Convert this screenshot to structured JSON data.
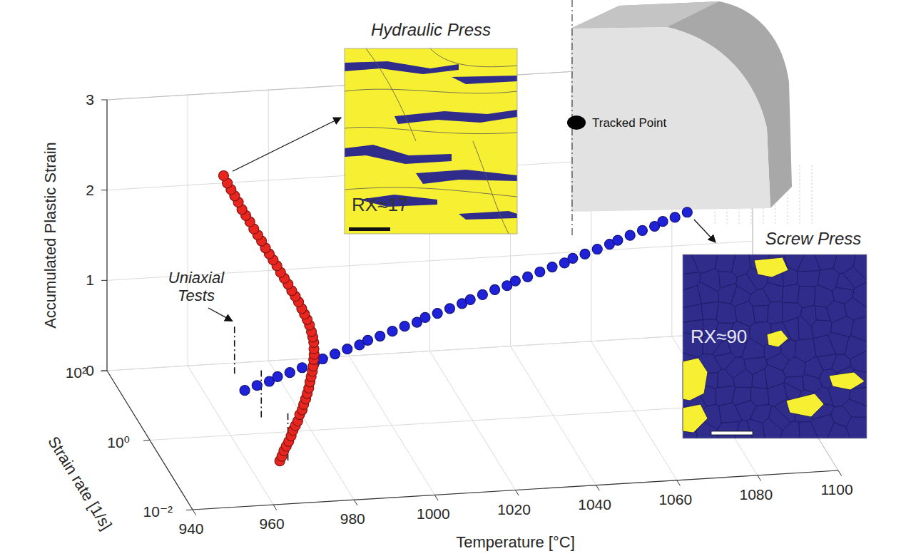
{
  "chart_data": {
    "type": "scatter3d",
    "xlabel": "Temperature [°C]",
    "ylabel": "Strain rate [1/s]",
    "zlabel": "Accumulated Plastic Strain",
    "xlim": [
      940,
      1100
    ],
    "xticks": [
      940,
      960,
      980,
      1000,
      1020,
      1040,
      1060,
      1080,
      1100
    ],
    "ylim": [
      0.01,
      100
    ],
    "yticks": [
      {
        "value": 0.01,
        "label": "10⁻²"
      },
      {
        "value": 1,
        "label": "10⁰"
      },
      {
        "value": 100,
        "label": "10²"
      }
    ],
    "zlim": [
      0,
      3
    ],
    "zticks": [
      0,
      1,
      2,
      3
    ],
    "log": "y",
    "grid": true,
    "series": [
      {
        "color": "#e8251f",
        "marker": "circle",
        "x": [
          968,
          968.5,
          969,
          969.6,
          970.2,
          970.8,
          971.4,
          972,
          972.6,
          973.2,
          973.8,
          974.3,
          974.8,
          975.3,
          975.8,
          976.2,
          976.6,
          977,
          977.3,
          977.6,
          977.8,
          977.9,
          978,
          977.9,
          977.7,
          977.4,
          977,
          976.5,
          976,
          975.4,
          974.8,
          974.1,
          973.4,
          972.7,
          972,
          971.3,
          970.6,
          969.9,
          969.2,
          968.5,
          967.8,
          967.1,
          966.4,
          965.7,
          965,
          964.4,
          963.8,
          963.2,
          962.6,
          962
        ],
        "y": [
          0.16,
          0.16,
          0.16,
          0.16,
          0.16,
          0.16,
          0.17,
          0.17,
          0.17,
          0.18,
          0.18,
          0.19,
          0.19,
          0.2,
          0.21,
          0.22,
          0.23,
          0.24,
          0.25,
          0.27,
          0.28,
          0.3,
          0.32,
          0.34,
          0.36,
          0.39,
          0.42,
          0.45,
          0.49,
          0.53,
          0.58,
          0.63,
          0.69,
          0.76,
          0.84,
          0.92,
          1.02,
          1.14,
          1.27,
          1.42,
          1.58,
          1.78,
          2.01,
          2.28,
          2.57,
          2.92,
          3.33,
          3.8,
          4.36,
          5.01
        ],
        "z": [
          0,
          0.05,
          0.11,
          0.16,
          0.21,
          0.27,
          0.32,
          0.37,
          0.42,
          0.48,
          0.53,
          0.58,
          0.64,
          0.69,
          0.74,
          0.8,
          0.85,
          0.9,
          0.95,
          1.01,
          1.06,
          1.11,
          1.17,
          1.22,
          1.27,
          1.33,
          1.38,
          1.43,
          1.48,
          1.54,
          1.59,
          1.64,
          1.7,
          1.75,
          1.8,
          1.86,
          1.91,
          1.96,
          2.01,
          2.07,
          2.12,
          2.17,
          2.23,
          2.28,
          2.33,
          2.39,
          2.44,
          2.49,
          2.54,
          2.6
        ]
      },
      {
        "color": "#1f22d8",
        "marker": "circle",
        "x": [
          970,
          973,
          976,
          978,
          981,
          984,
          987,
          989,
          992,
          995,
          998,
          1000,
          1003,
          1006,
          1009,
          1012,
          1014,
          1017,
          1020,
          1023,
          1025,
          1028,
          1031,
          1034,
          1036,
          1039,
          1042,
          1045,
          1048,
          1050,
          1053,
          1056,
          1059,
          1061,
          1064,
          1067,
          1070,
          1072,
          1075,
          1078
        ],
        "y": [
          16.6,
          16.3,
          16.0,
          15.7,
          15.4,
          15.1,
          14.8,
          14.5,
          14.2,
          13.9,
          13.7,
          13.4,
          13.2,
          12.9,
          12.7,
          12.4,
          12.2,
          12.0,
          11.7,
          11.5,
          11.3,
          11.1,
          10.9,
          10.7,
          10.5,
          10.3,
          10.1,
          9.9,
          9.7,
          9.5,
          9.4,
          9.2,
          9.0,
          8.9,
          8.7,
          8.5,
          8.4,
          8.3,
          8.2,
          8.1
        ],
        "z": [
          0.0,
          0.05,
          0.09,
          0.14,
          0.18,
          0.23,
          0.28,
          0.32,
          0.37,
          0.42,
          0.46,
          0.51,
          0.55,
          0.6,
          0.65,
          0.69,
          0.74,
          0.78,
          0.83,
          0.88,
          0.92,
          0.97,
          1.02,
          1.06,
          1.11,
          1.15,
          1.2,
          1.25,
          1.29,
          1.34,
          1.38,
          1.43,
          1.48,
          1.52,
          1.57,
          1.62,
          1.66,
          1.71,
          1.75,
          1.8
        ]
      }
    ],
    "uniaxial_tests": {
      "label": "Uniaxial Tests",
      "x": [
        970,
        970,
        970
      ],
      "y": [
        50,
        2.8,
        0.16
      ]
    },
    "insets": [
      {
        "title": "Hydraulic Press",
        "label": "RX≈17"
      },
      {
        "title": "Screw Press",
        "label": "RX≈90"
      }
    ],
    "tracked_point": {
      "label": "Tracked Point"
    }
  }
}
